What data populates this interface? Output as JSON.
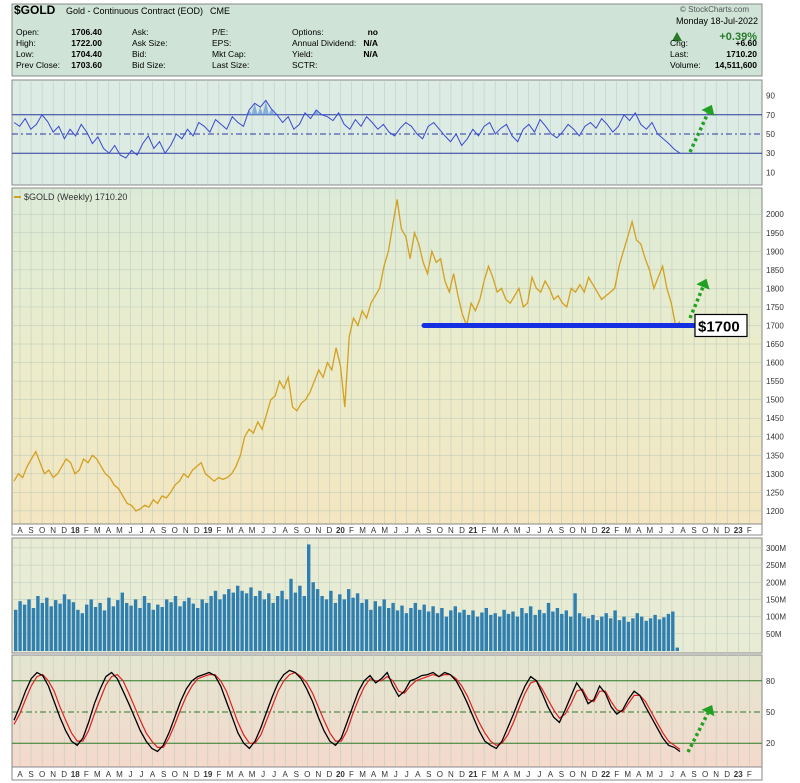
{
  "header": {
    "symbol": "$GOLD",
    "name": "Gold - Continuous Contract (EOD)",
    "exchange": "CME",
    "watermark": "© StockCharts.com",
    "date": "Monday 18-Jul-2022",
    "change_pct": "+0.39%",
    "stats_left": [
      {
        "label": "Open:",
        "value": "1706.40"
      },
      {
        "label": "High:",
        "value": "1722.00"
      },
      {
        "label": "Low:",
        "value": "1704.40"
      },
      {
        "label": "Prev Close:",
        "value": "1703.60"
      }
    ],
    "stats_mid": [
      {
        "label": "Ask:",
        "value": ""
      },
      {
        "label": "Ask Size:",
        "value": ""
      },
      {
        "label": "Bid:",
        "value": ""
      },
      {
        "label": "Bid Size:",
        "value": ""
      }
    ],
    "stats_mid2": [
      {
        "label": "P/E:",
        "value": ""
      },
      {
        "label": "EPS:",
        "value": ""
      },
      {
        "label": "Mkt Cap:",
        "value": ""
      },
      {
        "label": "Last Size:",
        "value": ""
      }
    ],
    "stats_right": [
      {
        "label": "Options:",
        "value": "no"
      },
      {
        "label": "Annual Dividend:",
        "value": "N/A"
      },
      {
        "label": "Yield:",
        "value": "N/A"
      },
      {
        "label": "SCTR:",
        "value": ""
      }
    ],
    "stats_far": [
      {
        "label": "Chg:",
        "value": "+6.60"
      },
      {
        "label": "Last:",
        "value": "1710.20"
      },
      {
        "label": "Volume:",
        "value": "14,511,600"
      }
    ],
    "colors": {
      "up": "#2a7a2a",
      "header_bg": "#cfe3d7"
    }
  },
  "price_legend": "$GOLD (Weekly) 1710.20",
  "support_label": "$1700",
  "colors": {
    "price": "#d4a020",
    "rsi": "#3a4bd0",
    "support": "#1530e0",
    "arrow": "#22a022",
    "volume": "#2f7fb0",
    "stoch_k": "#000000",
    "stoch_d": "#e02020"
  },
  "chart_data": [
    {
      "type": "line",
      "panel": "rsi",
      "ylim": [
        0,
        100
      ],
      "yticks": [
        10,
        30,
        50,
        70,
        90
      ],
      "levels": [
        30,
        50,
        70
      ],
      "series": [
        {
          "values": [
            62,
            58,
            66,
            55,
            60,
            70,
            63,
            52,
            58,
            45,
            55,
            48,
            60,
            52,
            40,
            47,
            35,
            30,
            38,
            28,
            25,
            33,
            28,
            40,
            48,
            35,
            42,
            30,
            38,
            50,
            45,
            55,
            48,
            62,
            58,
            52,
            65,
            60,
            55,
            68,
            62,
            58,
            75,
            82,
            78,
            85,
            76,
            70,
            62,
            68,
            55,
            60,
            72,
            66,
            75,
            70,
            68,
            64,
            72,
            60,
            55,
            65,
            58,
            68,
            62,
            55,
            60,
            52,
            48,
            56,
            62,
            58,
            50,
            45,
            58,
            62,
            55,
            48,
            42,
            50,
            38,
            45,
            55,
            48,
            58,
            62,
            50,
            56,
            60,
            48,
            42,
            55,
            60,
            52,
            65,
            58,
            50,
            46,
            52,
            60,
            55,
            48,
            58,
            62,
            56,
            66,
            60,
            52,
            58,
            70,
            64,
            72,
            60,
            55,
            62,
            50,
            45,
            40,
            34,
            30
          ]
        }
      ]
    },
    {
      "type": "line",
      "panel": "price",
      "title": "$GOLD (Weekly) 1710.20",
      "ylim": [
        1170,
        2060
      ],
      "yticks": [
        1200,
        1250,
        1300,
        1350,
        1400,
        1450,
        1500,
        1550,
        1600,
        1650,
        1700,
        1750,
        1800,
        1850,
        1900,
        1950,
        2000
      ],
      "support_level": 1700,
      "series": [
        {
          "name": "$GOLD (Weekly)",
          "values": [
            1280,
            1300,
            1290,
            1320,
            1340,
            1360,
            1330,
            1300,
            1310,
            1290,
            1300,
            1320,
            1340,
            1330,
            1300,
            1310,
            1340,
            1330,
            1350,
            1340,
            1320,
            1300,
            1290,
            1270,
            1260,
            1240,
            1220,
            1215,
            1200,
            1205,
            1215,
            1210,
            1230,
            1220,
            1240,
            1235,
            1250,
            1270,
            1280,
            1300,
            1290,
            1310,
            1320,
            1330,
            1300,
            1290,
            1280,
            1290,
            1285,
            1290,
            1300,
            1320,
            1350,
            1400,
            1420,
            1410,
            1440,
            1420,
            1460,
            1500,
            1510,
            1550,
            1530,
            1560,
            1480,
            1470,
            1490,
            1500,
            1520,
            1550,
            1580,
            1560,
            1600,
            1580,
            1640,
            1590,
            1480,
            1670,
            1720,
            1700,
            1740,
            1720,
            1760,
            1780,
            1800,
            1860,
            1900,
            1970,
            2040,
            1960,
            1940,
            1880,
            1950,
            1920,
            1870,
            1840,
            1900,
            1870,
            1880,
            1820,
            1790,
            1840,
            1780,
            1730,
            1700,
            1760,
            1740,
            1770,
            1820,
            1860,
            1830,
            1790,
            1800,
            1770,
            1760,
            1780,
            1800,
            1750,
            1760,
            1830,
            1800,
            1790,
            1820,
            1800,
            1770,
            1780,
            1760,
            1750,
            1800,
            1790,
            1810,
            1790,
            1830,
            1810,
            1790,
            1770,
            1780,
            1790,
            1800,
            1860,
            1900,
            1940,
            1980,
            1930,
            1920,
            1880,
            1850,
            1800,
            1830,
            1860,
            1800,
            1760,
            1700,
            1710
          ]
        }
      ]
    },
    {
      "type": "bar",
      "panel": "volume",
      "ylim": [
        0,
        320
      ],
      "yticks": [
        50,
        100,
        150,
        200,
        250,
        300
      ],
      "ytick_labels": [
        "50M",
        "100M",
        "150M",
        "200M",
        "250M",
        "300M"
      ],
      "series": [
        {
          "values": [
            120,
            145,
            135,
            150,
            125,
            160,
            140,
            155,
            130,
            148,
            138,
            165,
            150,
            142,
            120,
            110,
            135,
            150,
            128,
            140,
            118,
            155,
            130,
            148,
            170,
            140,
            132,
            150,
            125,
            160,
            140,
            120,
            135,
            128,
            150,
            142,
            160,
            130,
            145,
            155,
            138,
            125,
            150,
            140,
            160,
            175,
            150,
            165,
            180,
            170,
            190,
            175,
            168,
            185,
            160,
            175,
            150,
            168,
            140,
            160,
            175,
            150,
            210,
            170,
            190,
            160,
            310,
            200,
            180,
            160,
            150,
            175,
            140,
            165,
            150,
            180,
            155,
            168,
            140,
            150,
            120,
            145,
            130,
            150,
            125,
            140,
            118,
            132,
            110,
            125,
            140,
            120,
            135,
            115,
            130,
            110,
            125,
            100,
            118,
            130,
            112,
            120,
            105,
            118,
            100,
            112,
            125,
            105,
            110,
            100,
            120,
            108,
            115,
            100,
            125,
            110,
            130,
            105,
            120,
            110,
            140,
            115,
            125,
            108,
            118,
            100,
            168,
            110,
            100,
            95,
            105,
            90,
            100,
            110,
            95,
            118,
            90,
            100,
            85,
            95,
            110,
            100,
            88,
            95,
            105,
            92,
            98,
            108,
            115,
            10
          ]
        }
      ]
    },
    {
      "type": "line",
      "panel": "stochastic",
      "ylim": [
        0,
        100
      ],
      "yticks": [
        20,
        50,
        80
      ],
      "levels": [
        20,
        50,
        80
      ],
      "series": [
        {
          "values": [
            42,
            55,
            70,
            82,
            88,
            85,
            75,
            60,
            45,
            32,
            22,
            18,
            25,
            40,
            58,
            72,
            84,
            88,
            82,
            70,
            58,
            45,
            32,
            22,
            15,
            12,
            18,
            30,
            45,
            60,
            72,
            80,
            84,
            86,
            88,
            85,
            75,
            60,
            45,
            30,
            20,
            15,
            22,
            35,
            50,
            65,
            78,
            86,
            90,
            88,
            82,
            72,
            60,
            45,
            32,
            22,
            18,
            25,
            40,
            55,
            70,
            80,
            85,
            78,
            82,
            88,
            75,
            65,
            70,
            80,
            82,
            85,
            86,
            88,
            84,
            88,
            86,
            80,
            70,
            58,
            45,
            32,
            22,
            18,
            15,
            22,
            35,
            48,
            62,
            75,
            84,
            80,
            68,
            55,
            45,
            40,
            52,
            65,
            78,
            70,
            58,
            62,
            75,
            68,
            55,
            48,
            52,
            62,
            70,
            66,
            55,
            45,
            35,
            25,
            18,
            16,
            12
          ]
        },
        {
          "values": [
            38,
            48,
            62,
            75,
            84,
            86,
            80,
            70,
            55,
            42,
            30,
            22,
            22,
            32,
            48,
            62,
            76,
            84,
            86,
            80,
            68,
            55,
            42,
            30,
            22,
            16,
            16,
            25,
            38,
            52,
            65,
            75,
            82,
            84,
            86,
            86,
            80,
            70,
            55,
            40,
            28,
            20,
            20,
            28,
            42,
            56,
            70,
            80,
            86,
            88,
            84,
            78,
            68,
            55,
            42,
            30,
            22,
            22,
            32,
            48,
            62,
            74,
            82,
            80,
            80,
            84,
            80,
            70,
            68,
            75,
            80,
            82,
            84,
            86,
            84,
            86,
            86,
            82,
            75,
            65,
            52,
            40,
            30,
            22,
            18,
            20,
            28,
            40,
            54,
            68,
            78,
            80,
            72,
            62,
            52,
            44,
            48,
            58,
            70,
            72,
            62,
            60,
            70,
            70,
            60,
            52,
            50,
            58,
            66,
            66,
            60,
            50,
            40,
            30,
            22,
            18,
            14
          ]
        }
      ]
    }
  ],
  "x_axis_labels": [
    "A",
    "S",
    "O",
    "N",
    "D",
    "18",
    "F",
    "M",
    "A",
    "M",
    "J",
    "J",
    "A",
    "S",
    "O",
    "N",
    "D",
    "19",
    "F",
    "M",
    "A",
    "M",
    "J",
    "J",
    "A",
    "S",
    "O",
    "N",
    "D",
    "20",
    "F",
    "M",
    "A",
    "M",
    "J",
    "J",
    "A",
    "S",
    "O",
    "N",
    "D",
    "21",
    "F",
    "M",
    "A",
    "M",
    "J",
    "J",
    "A",
    "S",
    "O",
    "N",
    "D",
    "22",
    "F",
    "M",
    "A",
    "M",
    "J",
    "J",
    "A",
    "S",
    "O",
    "N",
    "D",
    "23",
    "F"
  ]
}
